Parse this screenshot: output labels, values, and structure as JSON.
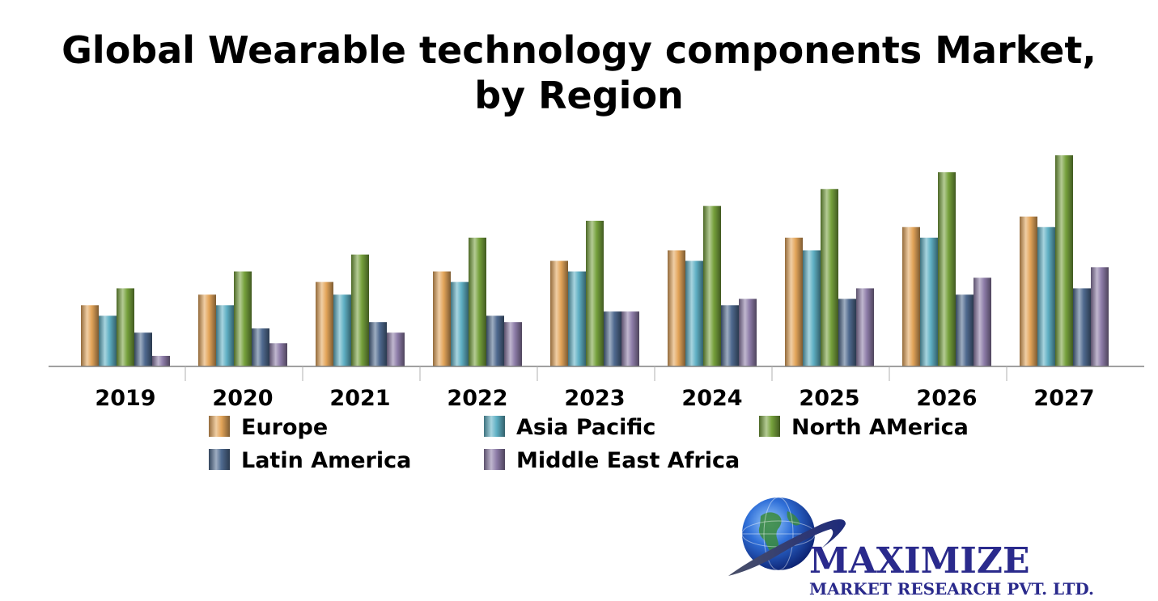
{
  "chart_data": {
    "type": "bar",
    "title": "Global Wearable technology components Market, by Region",
    "title_lines": [
      "Global Wearable technology components Market,",
      "by Region"
    ],
    "xlabel": "",
    "ylabel": "",
    "categories": [
      "2019",
      "2020",
      "2021",
      "2022",
      "2023",
      "2024",
      "2025",
      "2026",
      "2027"
    ],
    "ylim": [
      0,
      100
    ],
    "grid": false,
    "legend_position": "bottom",
    "series": [
      {
        "name": "Europe",
        "color": "#e3a55a",
        "values": [
          29,
          34,
          40,
          45,
          50,
          55,
          61,
          66,
          71
        ]
      },
      {
        "name": "Asia Pacific",
        "color": "#5fb0c4",
        "values": [
          24,
          29,
          34,
          40,
          45,
          50,
          55,
          61,
          66
        ]
      },
      {
        "name": "North AMerica",
        "color": "#76a13c",
        "values": [
          37,
          45,
          53,
          61,
          69,
          76,
          84,
          92,
          100
        ]
      },
      {
        "name": "Latin America",
        "color": "#4f6a8f",
        "values": [
          16,
          18,
          21,
          24,
          26,
          29,
          32,
          34,
          37
        ]
      },
      {
        "name": "Middle East Africa",
        "color": "#8d7ca8",
        "values": [
          5,
          11,
          16,
          21,
          26,
          32,
          37,
          42,
          47
        ]
      }
    ]
  },
  "logo": {
    "name": "MAXIMIZE",
    "subtitle": "MARKET RESEARCH PVT. LTD."
  }
}
